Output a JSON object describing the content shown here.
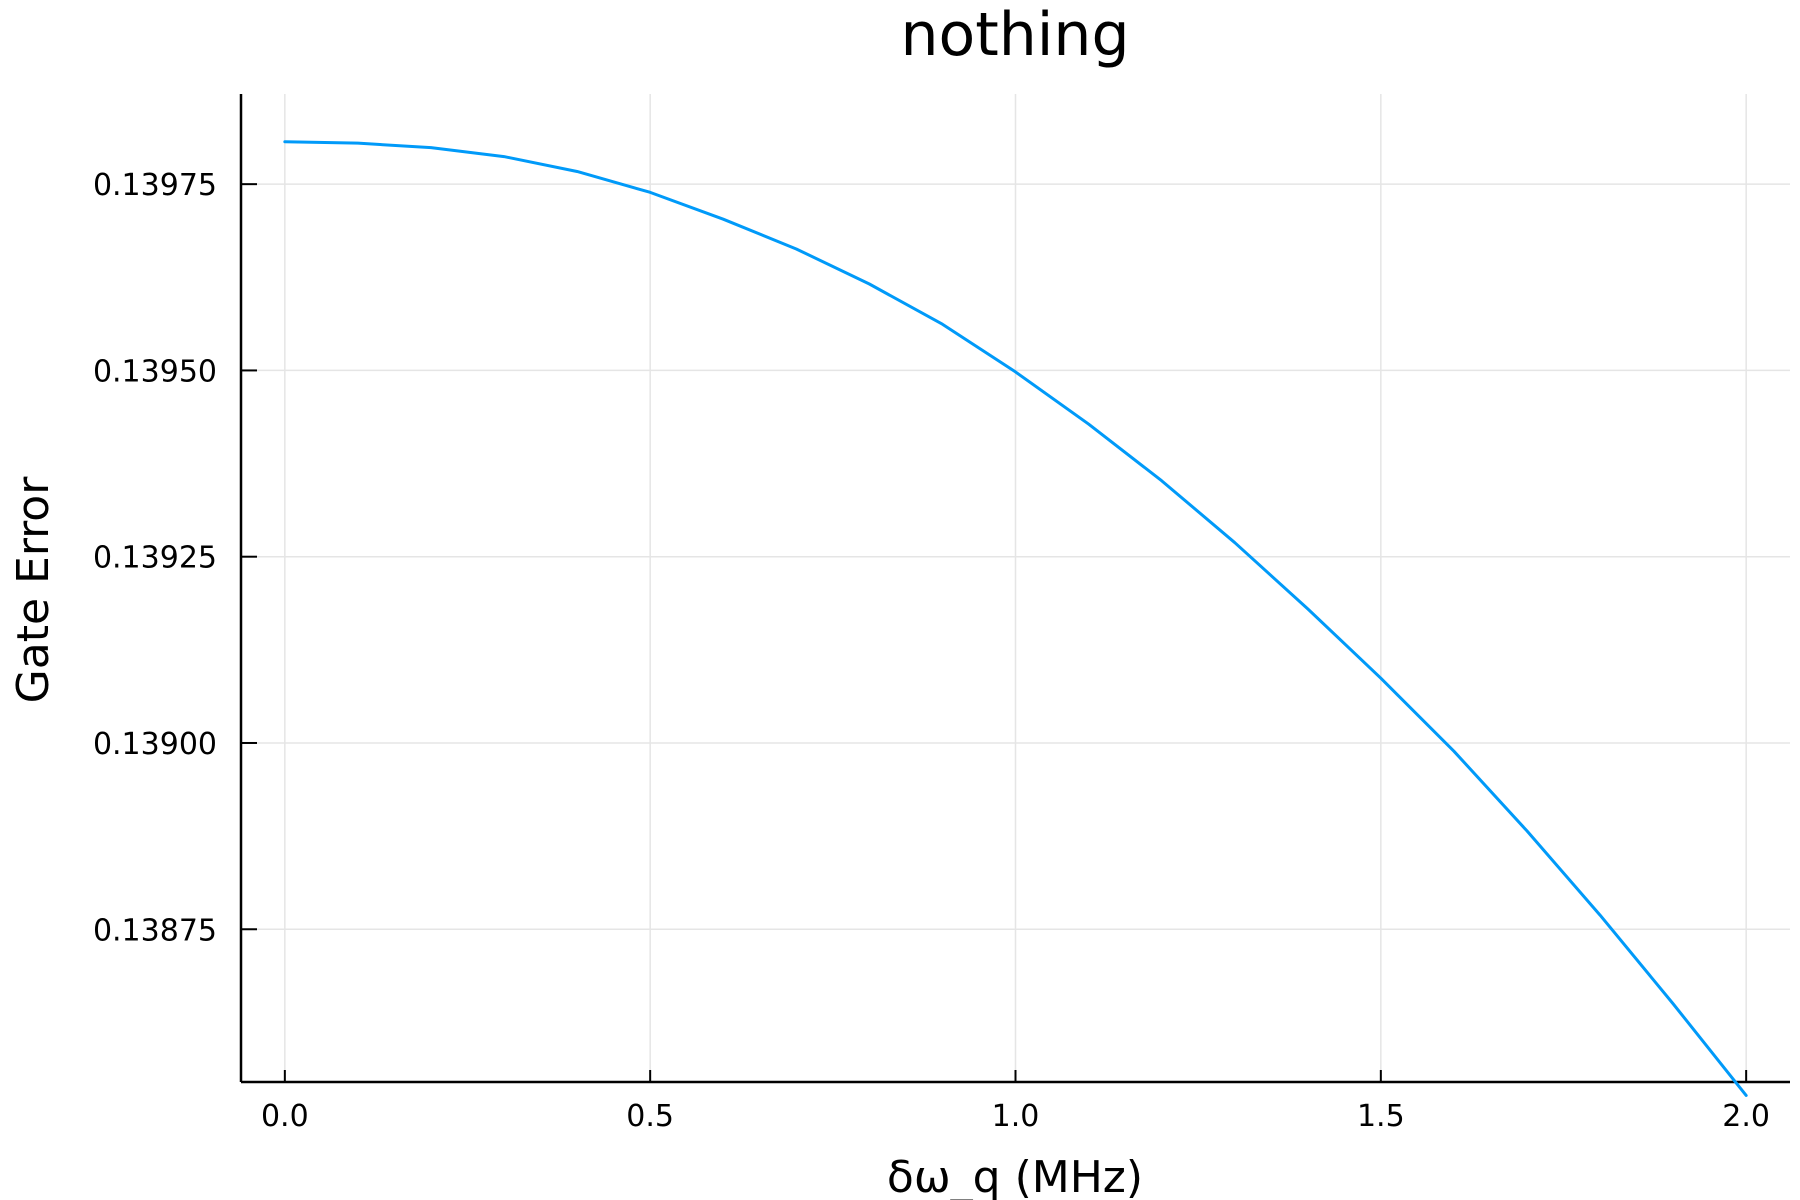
{
  "chart_data": {
    "type": "line",
    "title": "nothing",
    "xlabel": "δω_q (MHz)",
    "ylabel": "Gate Error",
    "xlim": [
      -0.06,
      2.06
    ],
    "ylim": [
      0.138545,
      0.139871
    ],
    "x_ticks": [
      0.0,
      0.5,
      1.0,
      1.5,
      2.0
    ],
    "x_tick_labels": [
      "0.0",
      "0.5",
      "1.0",
      "1.5",
      "2.0"
    ],
    "y_ticks": [
      0.13875,
      0.139,
      0.13925,
      0.1395,
      0.13975
    ],
    "y_tick_labels": [
      "0.13875",
      "0.13900",
      "0.13925",
      "0.13950",
      "0.13975"
    ],
    "grid": true,
    "legend": "none",
    "series": [
      {
        "color": "#009af9",
        "x": [
          0.0,
          0.1,
          0.2,
          0.3,
          0.4,
          0.5,
          0.6,
          0.7,
          0.8,
          0.9,
          1.0,
          1.1,
          1.2,
          1.3,
          1.4,
          1.5,
          1.6,
          1.7,
          1.8,
          1.9,
          2.0
        ],
        "y": [
          0.139807,
          0.139805,
          0.139799,
          0.139787,
          0.139767,
          0.139739,
          0.139703,
          0.139663,
          0.139616,
          0.139562,
          0.139498,
          0.139428,
          0.139352,
          0.139269,
          0.13918,
          0.139087,
          0.138989,
          0.138882,
          0.138769,
          0.13865,
          0.138527
        ]
      }
    ]
  }
}
